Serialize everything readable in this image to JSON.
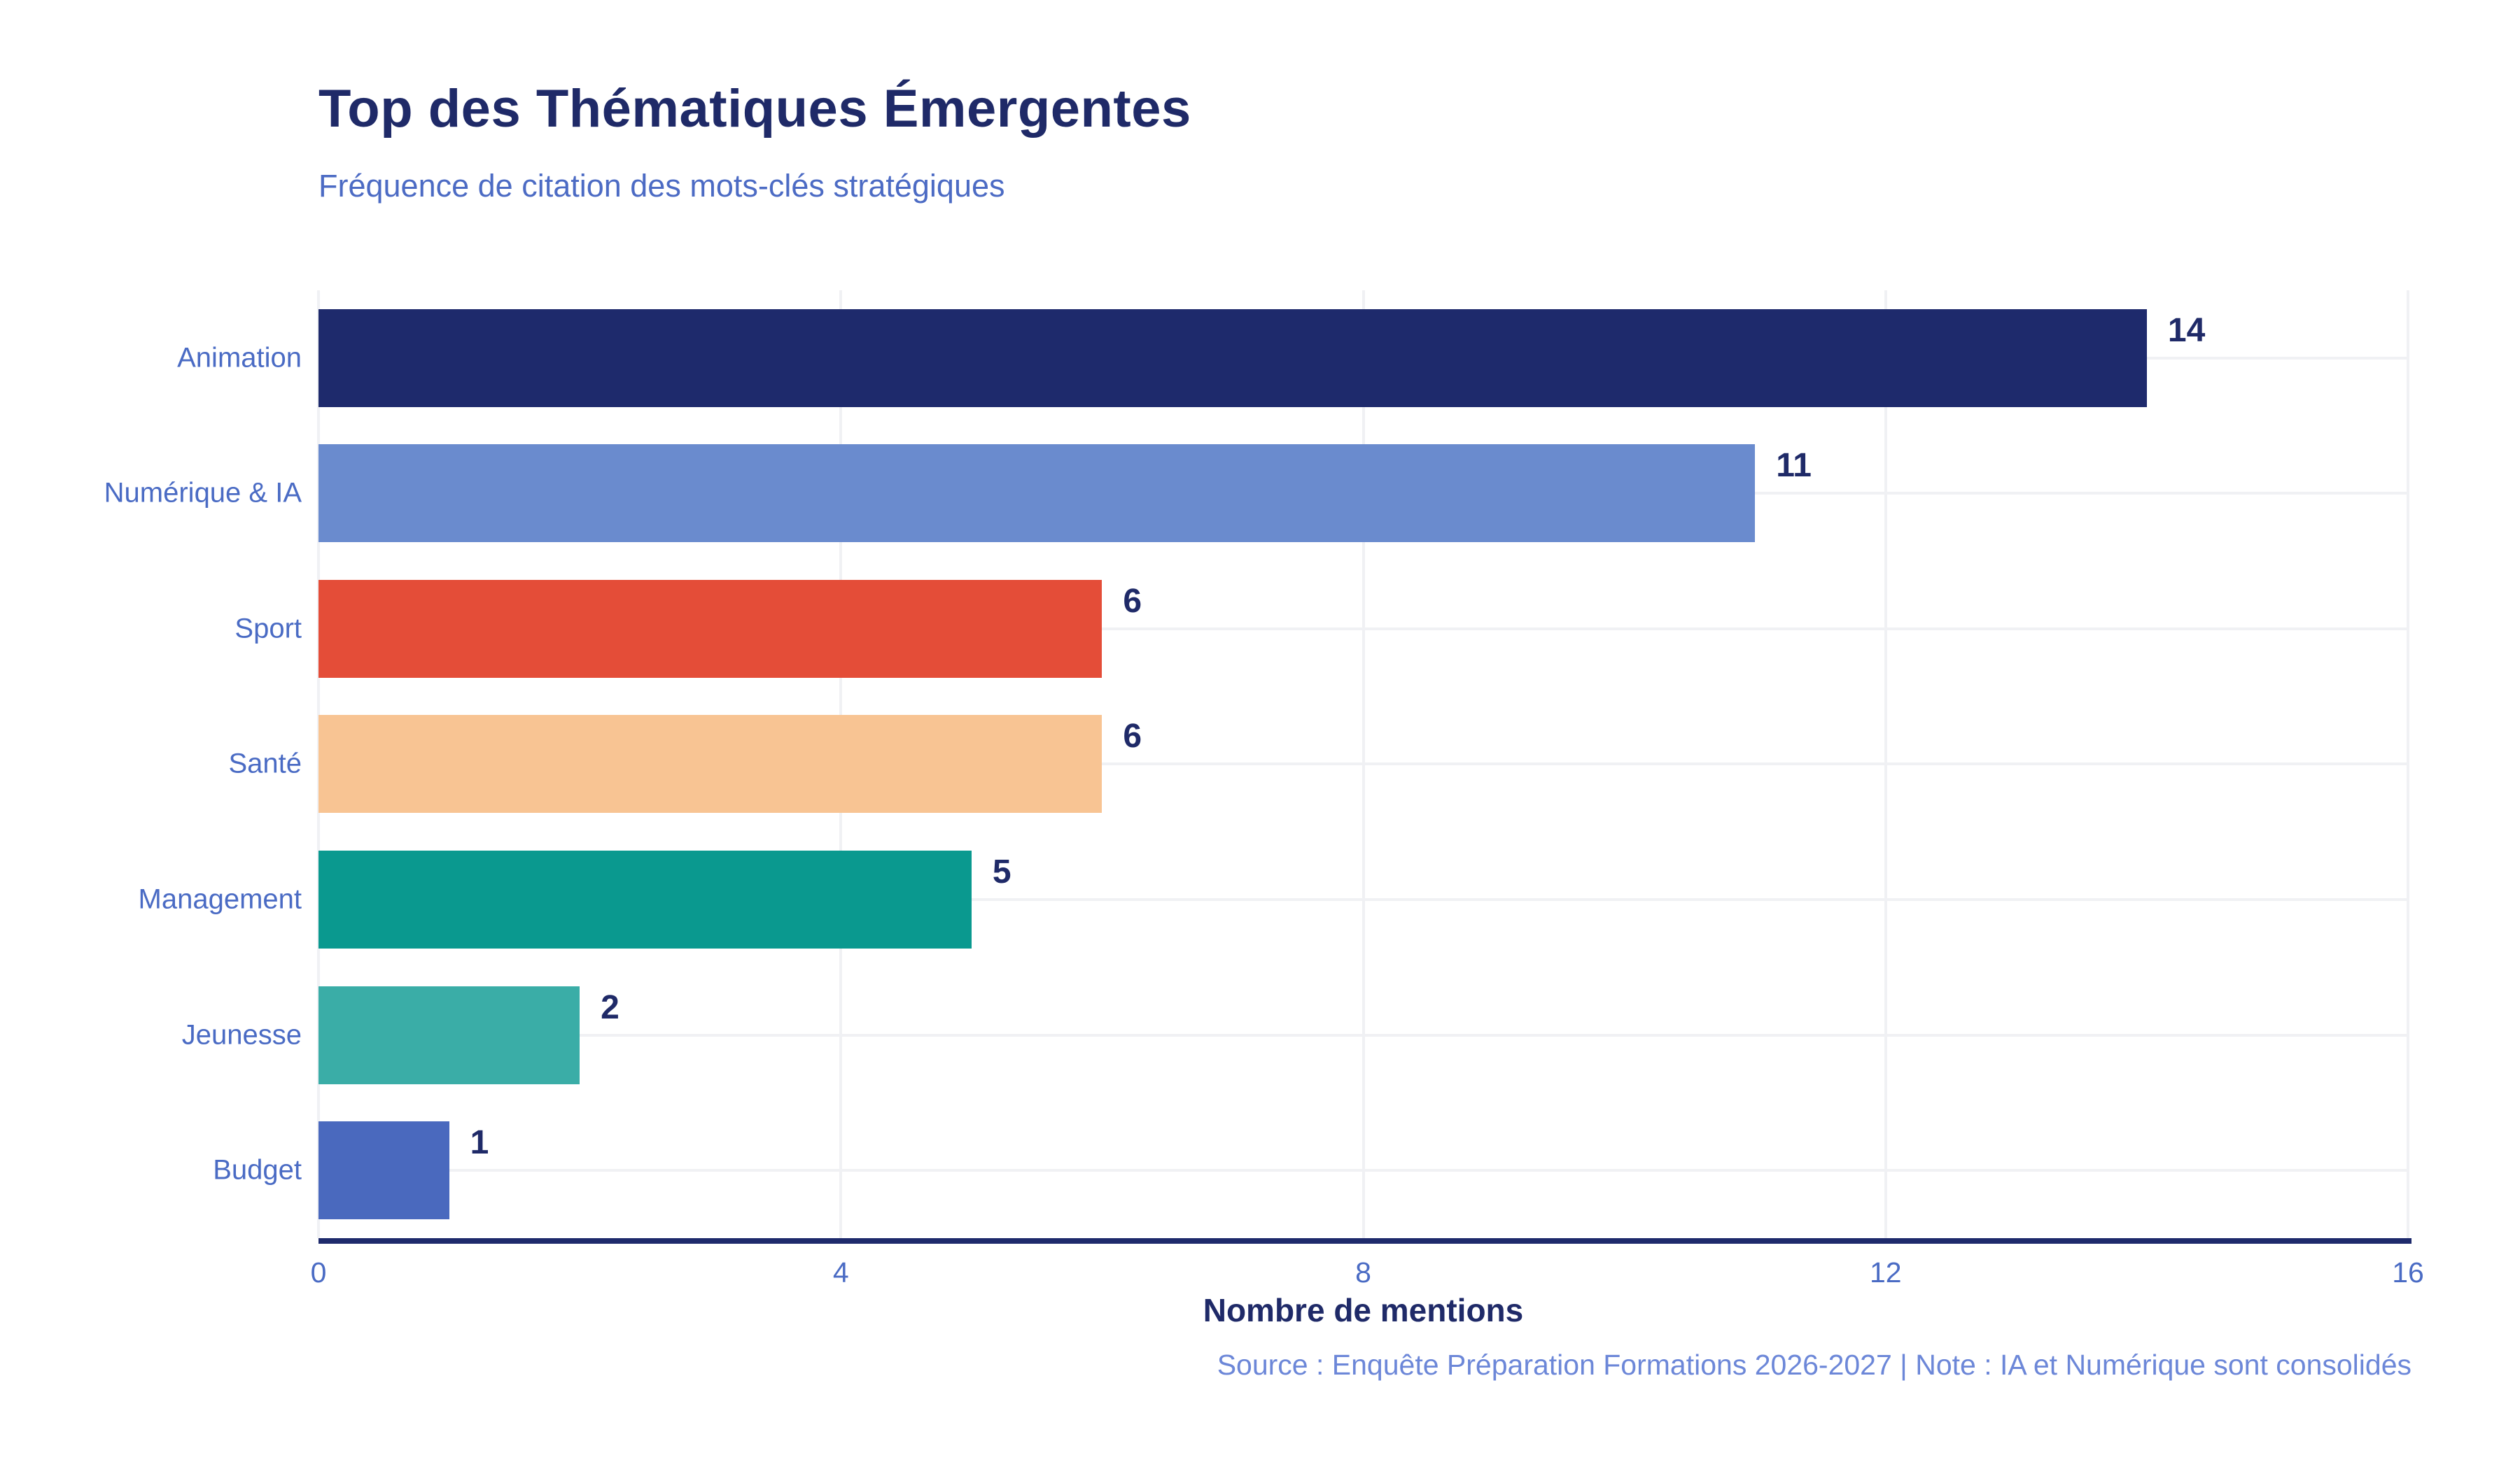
{
  "chart_data": {
    "type": "bar",
    "orientation": "horizontal",
    "title": "Top des Thématiques Émergentes",
    "subtitle": "Fréquence de citation des mots-clés stratégiques",
    "categories": [
      "Animation",
      "Numérique & IA",
      "Sport",
      "Santé",
      "Management",
      "Jeunesse",
      "Budget"
    ],
    "values": [
      14,
      11,
      6,
      6,
      5,
      2,
      1
    ],
    "bar_colors": [
      "#1E2A6C",
      "#6A8BCE",
      "#E44D38",
      "#F8C493",
      "#0A998F",
      "#3AADA7",
      "#4A69BE"
    ],
    "xlabel": "Nombre de mentions",
    "xlim": [
      0,
      16
    ],
    "xticks": [
      0,
      4,
      8,
      12,
      16
    ],
    "grid": true,
    "legend": "none",
    "source_note": "Source : Enquête Préparation Formations 2026-2027 | Note : IA et Numérique sont consolidés"
  },
  "colors": {
    "title": "#1F2A68",
    "subtitle": "#4C6BC4",
    "category_label": "#4A6BC4",
    "value_label": "#1F2A68",
    "tick_label": "#4A6BC4",
    "axis_label": "#1F2A68",
    "source": "#6C87D8",
    "axis_line": "#1E2A6C",
    "gridline": "#F0F1F4",
    "background": "#FFFFFF"
  }
}
